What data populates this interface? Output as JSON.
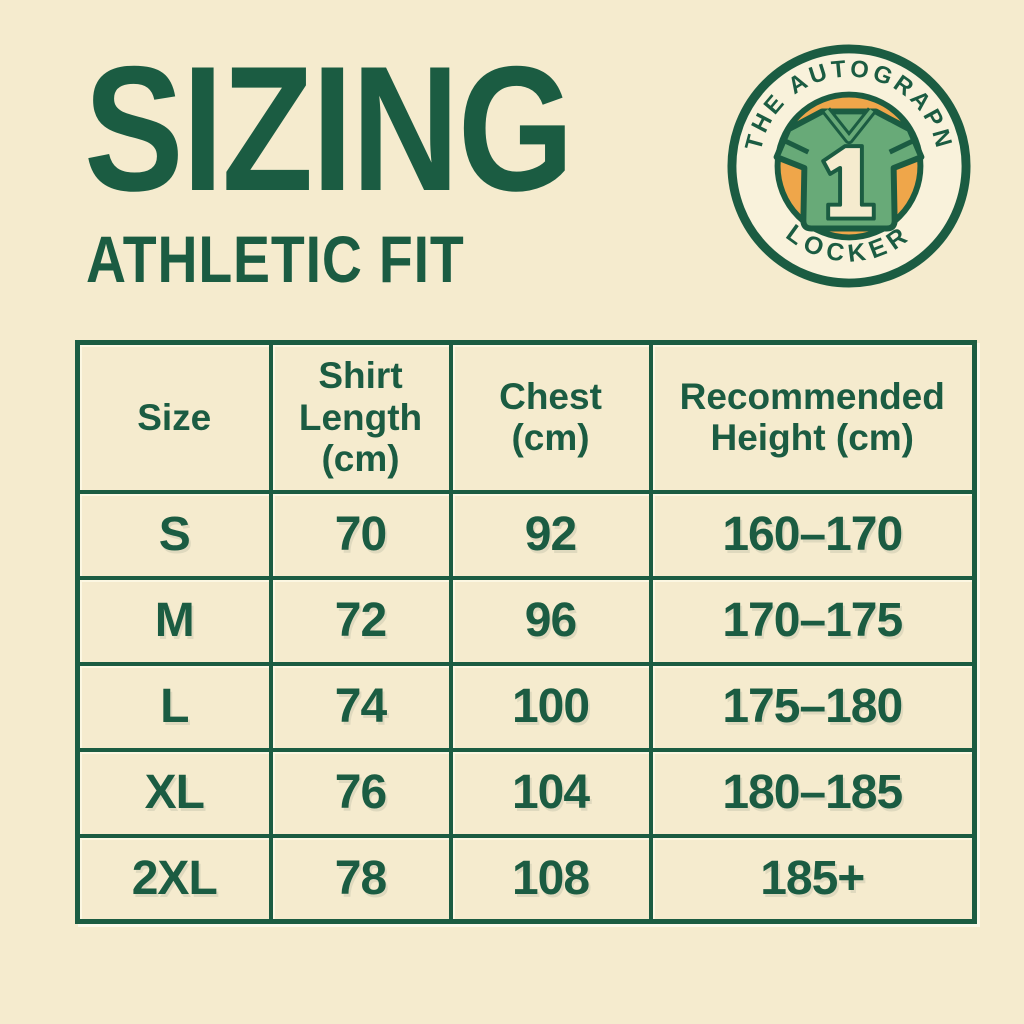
{
  "page": {
    "background_color": "#f5ebce",
    "accent_green": "#1b5c42",
    "accent_orange": "#efa64a",
    "jersey_green": "#68aa78"
  },
  "header": {
    "title": "SIZING",
    "subtitle": "ATHLETIC FIT"
  },
  "badge": {
    "top_text": "THE AUTOGRAPN",
    "bottom_text": "LOCKER",
    "jersey_number": "1"
  },
  "chart_data": {
    "type": "table",
    "title": "SIZING",
    "subtitle": "ATHLETIC FIT",
    "columns": [
      "Size",
      "Shirt Length (cm)",
      "Chest (cm)",
      "Recommended Height (cm)"
    ],
    "rows": [
      [
        "S",
        "70",
        "92",
        "160–170"
      ],
      [
        "M",
        "72",
        "96",
        "170–175"
      ],
      [
        "L",
        "74",
        "100",
        "175–180"
      ],
      [
        "XL",
        "76",
        "104",
        "180–185"
      ],
      [
        "2XL",
        "78",
        "108",
        "185+"
      ]
    ]
  }
}
